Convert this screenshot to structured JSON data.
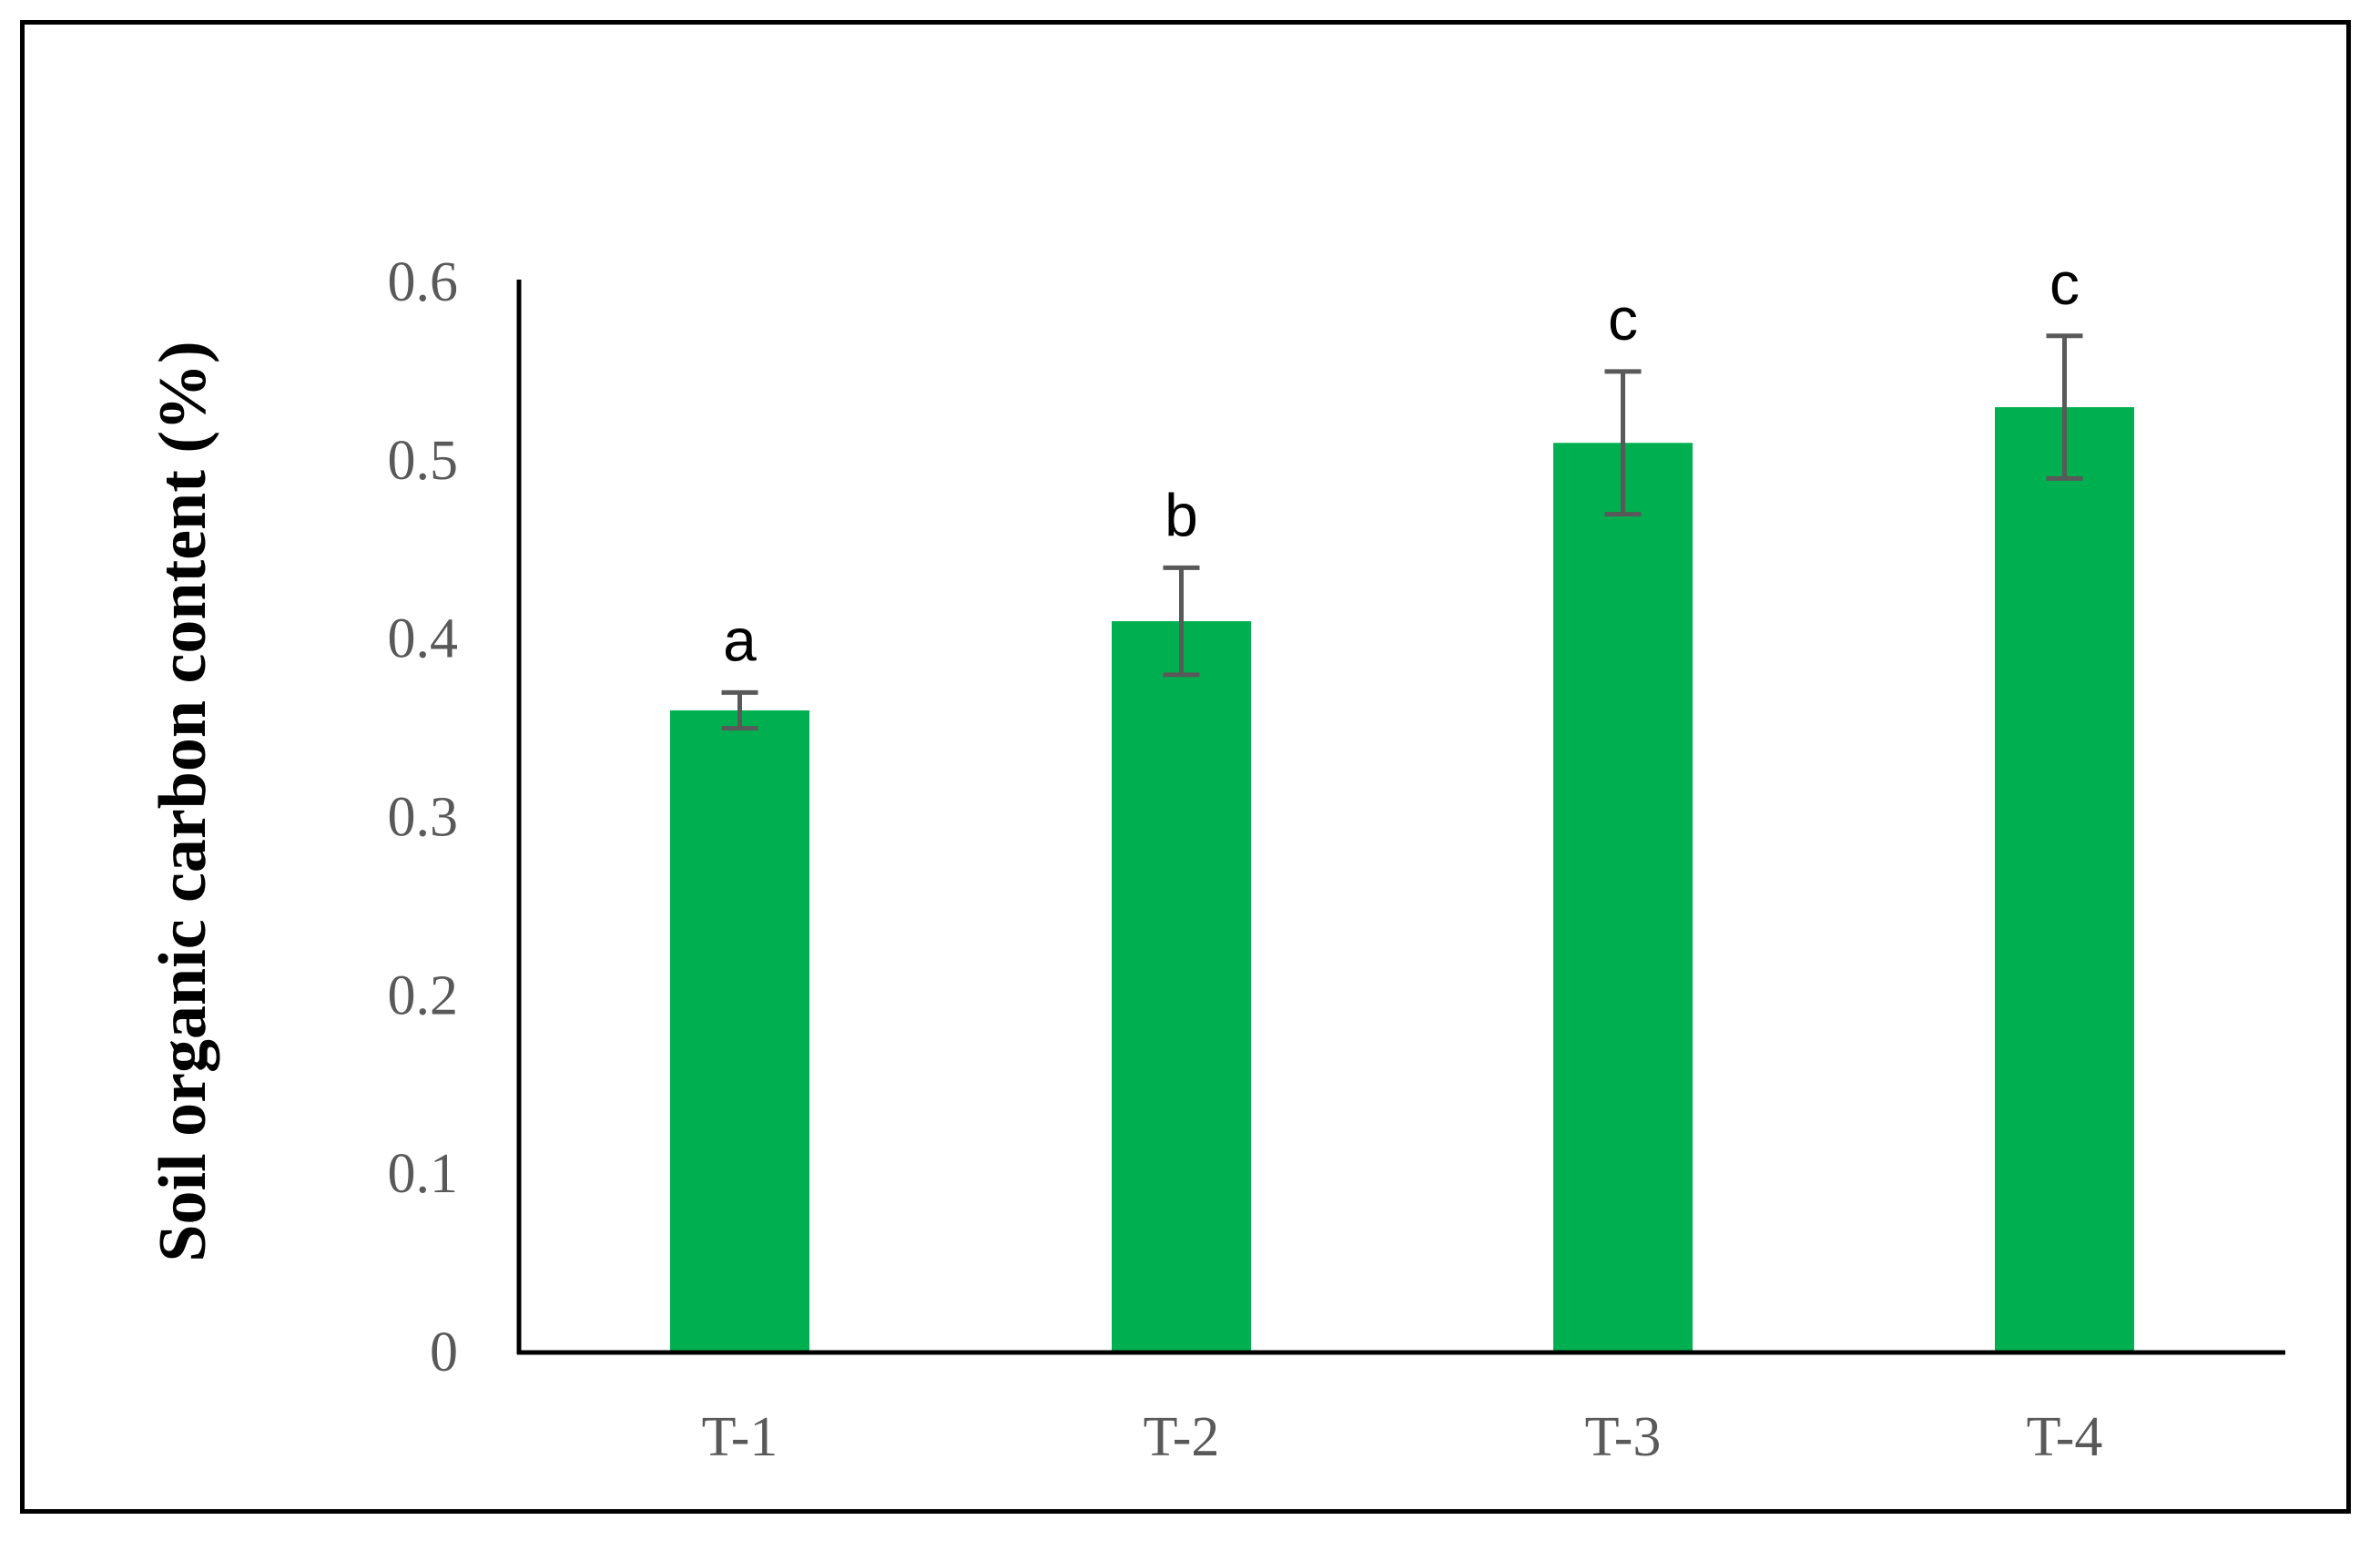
{
  "chart_data": {
    "type": "bar",
    "title": "",
    "xlabel": "",
    "ylabel": "Soil organic carbon content (%)",
    "categories": [
      "T-1",
      "T-2",
      "T-3",
      "T-4"
    ],
    "values": [
      0.36,
      0.41,
      0.51,
      0.53
    ],
    "error": [
      0.01,
      0.03,
      0.04,
      0.04
    ],
    "significance_letters": [
      "a",
      "b",
      "c",
      "c"
    ],
    "ylim": [
      0,
      0.6
    ],
    "yticks": [
      0,
      0.1,
      0.2,
      0.3,
      0.4,
      0.5,
      0.6
    ],
    "ytick_labels": [
      "0",
      "0.1",
      "0.2",
      "0.3",
      "0.4",
      "0.5",
      "0.6"
    ],
    "grid": false,
    "legend": "none",
    "colors": {
      "bar": "#00b050",
      "error_bar": "#595959",
      "axis": "#000000"
    }
  }
}
